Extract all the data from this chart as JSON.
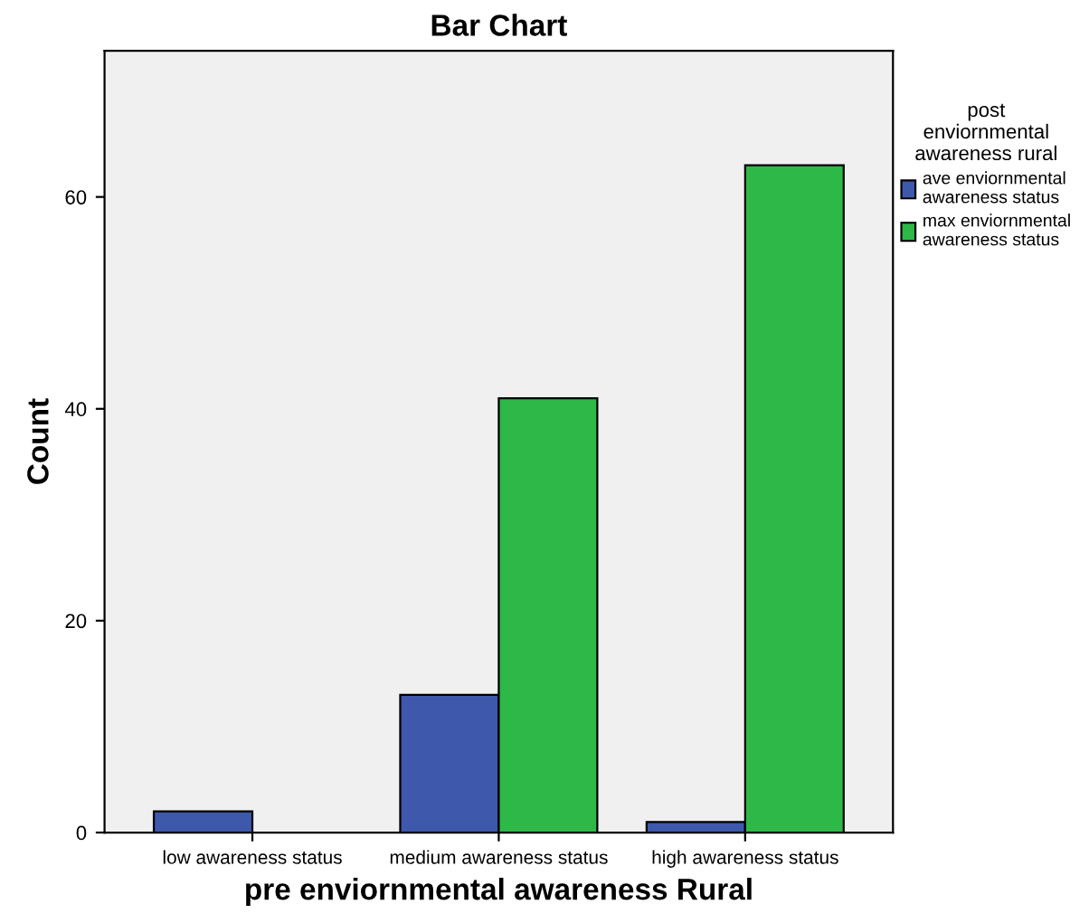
{
  "chart_data": {
    "type": "bar",
    "title": "Bar Chart",
    "xlabel": "pre enviornmental awareness Rural",
    "ylabel": "Count",
    "legend_title": "post\nenviornmental\nawareness rural",
    "categories": [
      "low awareness status",
      "medium awareness status",
      "high awareness status"
    ],
    "series": [
      {
        "name": "ave enviornmental\nawareness status",
        "color": "#3e58ac",
        "values": [
          2,
          13,
          1
        ]
      },
      {
        "name": "max enviornmental\nawareness status",
        "color": "#2eb848",
        "values": [
          null,
          41,
          63
        ]
      }
    ],
    "ylim": [
      0,
      73.8
    ],
    "yticks": [
      0,
      20,
      40,
      60
    ],
    "grid": false,
    "legend": "top right"
  }
}
